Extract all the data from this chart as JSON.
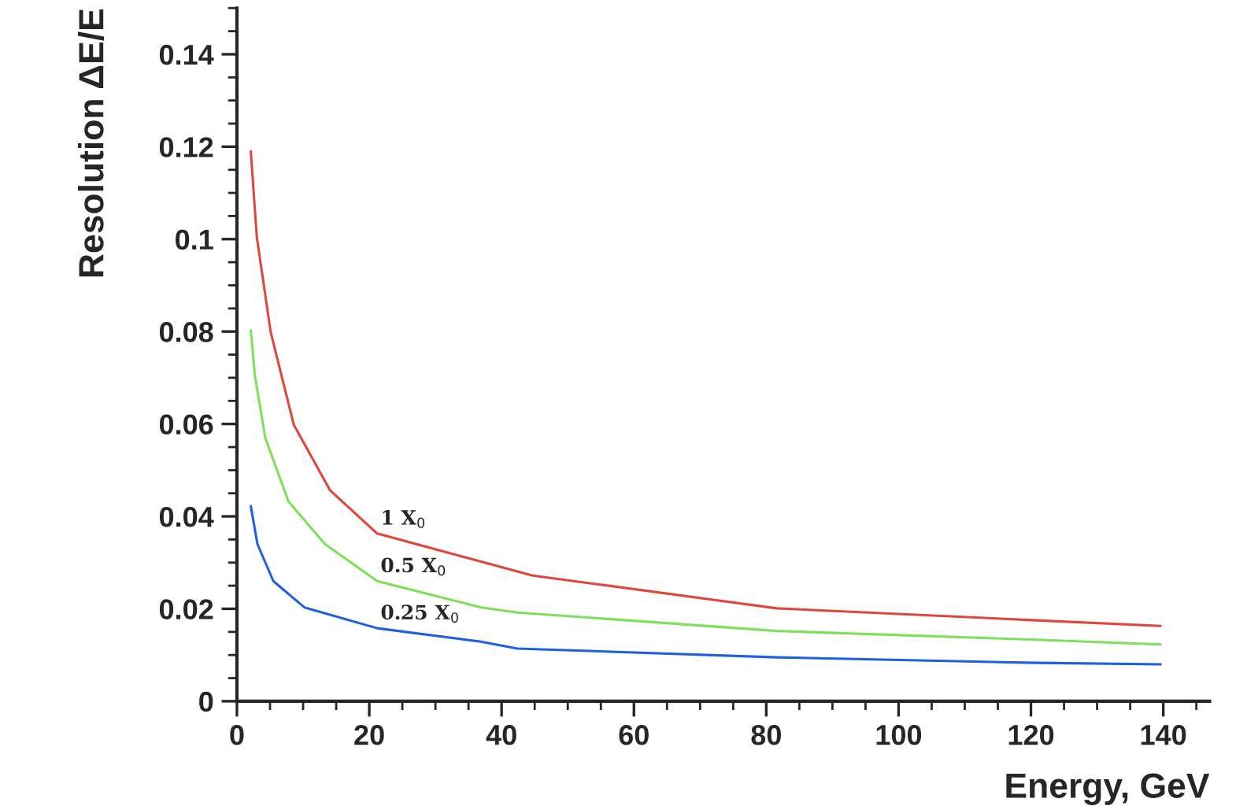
{
  "chart_data": {
    "type": "line",
    "xlabel": "Energy, GeV",
    "ylabel": "Resolution ΔE/E",
    "xlim": [
      0,
      147
    ],
    "ylim": [
      0,
      0.15
    ],
    "xticks": [
      0,
      20,
      40,
      60,
      80,
      100,
      120,
      140
    ],
    "yticks": [
      0,
      0.02,
      0.04,
      0.06,
      0.08,
      {
        "value": 0.1,
        "label": "0.1"
      },
      0.12,
      0.14
    ],
    "grid": false,
    "legend": false,
    "marker": "none",
    "line_style": "solid",
    "series": [
      {
        "name": "1 X$_{0}$",
        "color": "#e0463c",
        "x": [
          2.1,
          3.0,
          5.1,
          8.6,
          14.1,
          21.2,
          44.7,
          81.6,
          120.8,
          139.6
        ],
        "values": [
          0.119,
          0.1005,
          0.0799,
          0.0598,
          0.0456,
          0.0363,
          0.0272,
          0.0201,
          0.0175,
          0.0163
        ]
      },
      {
        "name": "0.5 X$_{0}$",
        "color": "#7ee05a",
        "x": [
          2.1,
          2.7,
          4.3,
          7.8,
          13.3,
          21.2,
          36.9,
          42.4,
          81.6,
          120.8,
          139.6
        ],
        "values": [
          0.0803,
          0.0706,
          0.0569,
          0.0432,
          0.034,
          0.026,
          0.0203,
          0.0192,
          0.0152,
          0.0133,
          0.0123
        ]
      },
      {
        "name": "0.25 X$_{0}$",
        "color": "#1f5fe0",
        "x": [
          2.1,
          3.1,
          5.5,
          10.2,
          21.2,
          36.9,
          42.4,
          81.6,
          120.8,
          139.6
        ],
        "values": [
          0.0422,
          0.034,
          0.026,
          0.0203,
          0.0158,
          0.0129,
          0.0114,
          0.0095,
          0.0083,
          0.008
        ]
      }
    ]
  }
}
